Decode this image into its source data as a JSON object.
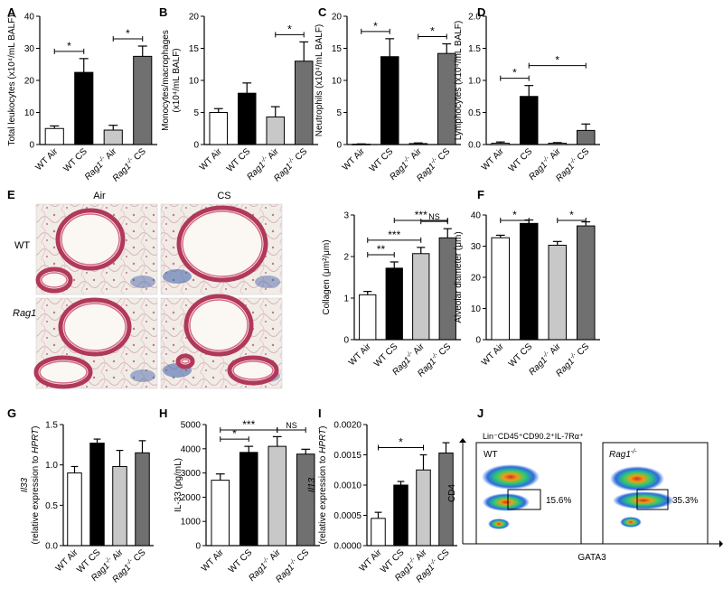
{
  "colors": {
    "wt_air": "#ffffff",
    "wt_cs": "#000000",
    "rag_air": "#c8c8c8",
    "rag_cs": "#707070"
  },
  "categories": [
    "WT Air",
    "WT CS",
    "Rag1-/- Air",
    "Rag1-/- CS"
  ],
  "tick_labels": {
    "wt_air": "WT Air",
    "wt_cs": "WT CS",
    "rag_prefix": "Rag1",
    "rag_sup": "-/-",
    "rag_air_suffix": " Air",
    "rag_cs_suffix": " CS"
  },
  "panel_letters": [
    "A",
    "B",
    "C",
    "D",
    "E",
    "F",
    "G",
    "H",
    "I",
    "J"
  ],
  "panel_e": {
    "col_labels": [
      "Air",
      "CS"
    ],
    "row_label_wt": "WT",
    "row_label_rag_prefix": "Rag1",
    "row_label_rag_sup": "-/-"
  },
  "chart_data": [
    {
      "id": "A",
      "type": "bar",
      "ylabel": "Total leukocytes (x10⁴/mL BALF)",
      "ylim": [
        0,
        40
      ],
      "yticks": [
        "0",
        "10",
        "20",
        "30",
        "40"
      ],
      "values": [
        5,
        22.5,
        4.5,
        27.5
      ],
      "errors": [
        0.8,
        4.3,
        1.5,
        3.2
      ],
      "sig": [
        {
          "from": 0,
          "to": 1,
          "label": "*"
        },
        {
          "from": 2,
          "to": 3,
          "label": "*"
        }
      ]
    },
    {
      "id": "B",
      "type": "bar",
      "ylabel": "Monocytes/macrophages (x10⁴/mL BALF)",
      "ylim": [
        0,
        20
      ],
      "yticks": [
        "0",
        "5",
        "10",
        "15",
        "20"
      ],
      "values": [
        5,
        8,
        4.3,
        13
      ],
      "errors": [
        0.6,
        1.6,
        1.6,
        3.0
      ],
      "sig": [
        {
          "from": 2,
          "to": 3,
          "label": "*"
        }
      ]
    },
    {
      "id": "C",
      "type": "bar",
      "ylabel": "Neutrophils (x10⁴/mL BALF)",
      "ylim": [
        0,
        20
      ],
      "yticks": [
        "0",
        "5",
        "10",
        "15",
        "20"
      ],
      "values": [
        0.05,
        13.7,
        0.15,
        14.2
      ],
      "errors": [
        0.05,
        2.8,
        0.1,
        1.5
      ],
      "sig": [
        {
          "from": 0,
          "to": 1,
          "label": "*"
        },
        {
          "from": 2,
          "to": 3,
          "label": "*"
        }
      ]
    },
    {
      "id": "D",
      "type": "bar",
      "ylabel": "Lymphocytes (x10⁴/mL BALF)",
      "ylim": [
        0,
        2.0
      ],
      "yticks": [
        "0.0",
        "0.5",
        "1.0",
        "1.5",
        "2.0"
      ],
      "values": [
        0.02,
        0.75,
        0.02,
        0.22
      ],
      "errors": [
        0.02,
        0.17,
        0.01,
        0.1
      ],
      "sig": [
        {
          "from": 0,
          "to": 1,
          "label": "*"
        },
        {
          "from": 1,
          "to": 3,
          "label": "*"
        }
      ]
    },
    {
      "id": "E",
      "type": "bar",
      "ylabel": "Collagen (μm²/μm)",
      "ylim": [
        0,
        3
      ],
      "yticks": [
        "0",
        "1",
        "2",
        "3"
      ],
      "values": [
        1.08,
        1.72,
        2.07,
        2.45
      ],
      "errors": [
        0.08,
        0.15,
        0.15,
        0.22
      ],
      "sig": [
        {
          "from": 0,
          "to": 1,
          "label": "**"
        },
        {
          "from": 0,
          "to": 2,
          "label": "***"
        },
        {
          "from": 2,
          "to": 3,
          "label": "NS"
        },
        {
          "from": 1,
          "to": 3,
          "label": "***"
        }
      ]
    },
    {
      "id": "F",
      "type": "bar",
      "ylabel": "Alveolar diameter (μm)",
      "ylim": [
        0,
        40
      ],
      "yticks": [
        "0",
        "10",
        "20",
        "30",
        "40"
      ],
      "values": [
        32.7,
        37.3,
        30.3,
        36.5
      ],
      "errors": [
        0.8,
        1.1,
        1.2,
        1.3
      ],
      "sig": [
        {
          "from": 0,
          "to": 1,
          "label": "*"
        },
        {
          "from": 2,
          "to": 3,
          "label": "*"
        }
      ]
    },
    {
      "id": "G",
      "type": "bar",
      "ylabel_italic": "Il33",
      "ylabel_pre": "(relative expression to ",
      "ylabel_gene": "HPRT",
      "ylabel_post": ")",
      "ylim": [
        0,
        1.5
      ],
      "yticks": [
        "0.0",
        "0.5",
        "1.0",
        "1.5"
      ],
      "values": [
        0.9,
        1.27,
        0.98,
        1.15
      ],
      "errors": [
        0.08,
        0.05,
        0.2,
        0.15
      ],
      "sig": []
    },
    {
      "id": "H",
      "type": "bar",
      "ylabel": "IL-33 (pg/mL)",
      "ylim": [
        0,
        5000
      ],
      "yticks": [
        "0",
        "1000",
        "2000",
        "3000",
        "4000",
        "5000"
      ],
      "values": [
        2700,
        3850,
        4100,
        3780
      ],
      "errors": [
        260,
        250,
        400,
        200
      ],
      "sig": [
        {
          "from": 0,
          "to": 1,
          "label": "*"
        },
        {
          "from": 0,
          "to": 2,
          "label": "***"
        },
        {
          "from": 2,
          "to": 3,
          "label": "NS"
        }
      ]
    },
    {
      "id": "I",
      "type": "bar",
      "ylabel_italic": "Il13",
      "ylabel_pre": "(relative expression to ",
      "ylabel_gene": "HPRT",
      "ylabel_post": ")",
      "ylim": [
        0,
        0.002
      ],
      "yticks": [
        "0.0000",
        "0.0005",
        "0.0010",
        "0.0015",
        "0.0020"
      ],
      "values": [
        0.00045,
        0.001,
        0.00125,
        0.00153
      ],
      "errors": [
        0.0001,
        6e-05,
        0.00025,
        0.00017
      ],
      "sig": [
        {
          "from": 0,
          "to": 2,
          "label": "*"
        }
      ]
    }
  ],
  "panel_j": {
    "gate_title": "Lin⁻CD45⁺CD90.2⁺IL-7Rα⁺",
    "ylabel": "CD4",
    "xlabel": "GATA3",
    "left_label": "WT",
    "left_pct": "15.6%",
    "right_label_prefix": "Rag1",
    "right_label_sup": "-/-",
    "right_pct": "35.3%"
  }
}
